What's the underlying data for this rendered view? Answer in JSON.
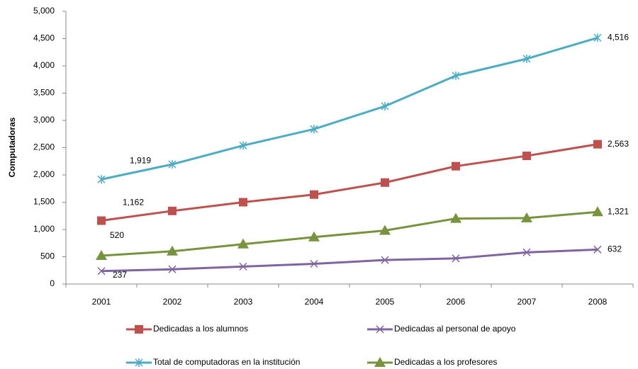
{
  "chart_data": {
    "type": "line",
    "y_label": "Computadoras",
    "categories": [
      "2001",
      "2002",
      "2003",
      "2004",
      "2005",
      "2006",
      "2007",
      "2008"
    ],
    "ylim": [
      0,
      5000
    ],
    "yticks": [
      0,
      500,
      {
        "value": 1000,
        "label": "1,000"
      },
      {
        "value": 1500,
        "label": "1,500"
      },
      {
        "value": 2000,
        "label": "2,000"
      },
      {
        "value": 2500,
        "label": "2,500"
      },
      {
        "value": 3000,
        "label": "3,000"
      },
      {
        "value": 3500,
        "label": "3,500"
      },
      {
        "value": 4000,
        "label": "4,000"
      },
      {
        "value": 4500,
        "label": "4,500"
      },
      {
        "value": 5000,
        "label": "5,000"
      }
    ],
    "grid": false,
    "legend": "bottom",
    "series": [
      {
        "name": "Dedicadas a los alumnos",
        "color": "#c0504d",
        "marker": "square",
        "values": [
          1162,
          1340,
          1500,
          1640,
          1860,
          2160,
          2350,
          2563
        ],
        "value_labels": [
          "1,162",
          null,
          null,
          null,
          null,
          null,
          null,
          "2,563"
        ]
      },
      {
        "name": "Dedicadas al personal de apoyo",
        "color": "#8064a2",
        "marker": "x",
        "values": [
          237,
          270,
          320,
          370,
          440,
          470,
          580,
          632
        ],
        "value_labels": [
          "237",
          null,
          null,
          null,
          null,
          null,
          null,
          "632"
        ]
      },
      {
        "name": "Total de computadoras en la institución",
        "color": "#4bacc6",
        "marker": "star",
        "values": [
          1919,
          2195,
          2540,
          2840,
          3260,
          3820,
          4130,
          4516
        ],
        "value_labels": [
          "1,919",
          null,
          null,
          null,
          null,
          null,
          null,
          "4,516"
        ]
      },
      {
        "name": "Dedicadas a los profesores",
        "color": "#77933c",
        "marker": "triangle",
        "values": [
          520,
          600,
          730,
          860,
          980,
          1200,
          1210,
          1321
        ],
        "value_labels": [
          "520",
          null,
          null,
          null,
          null,
          null,
          null,
          "1,321"
        ]
      }
    ]
  }
}
